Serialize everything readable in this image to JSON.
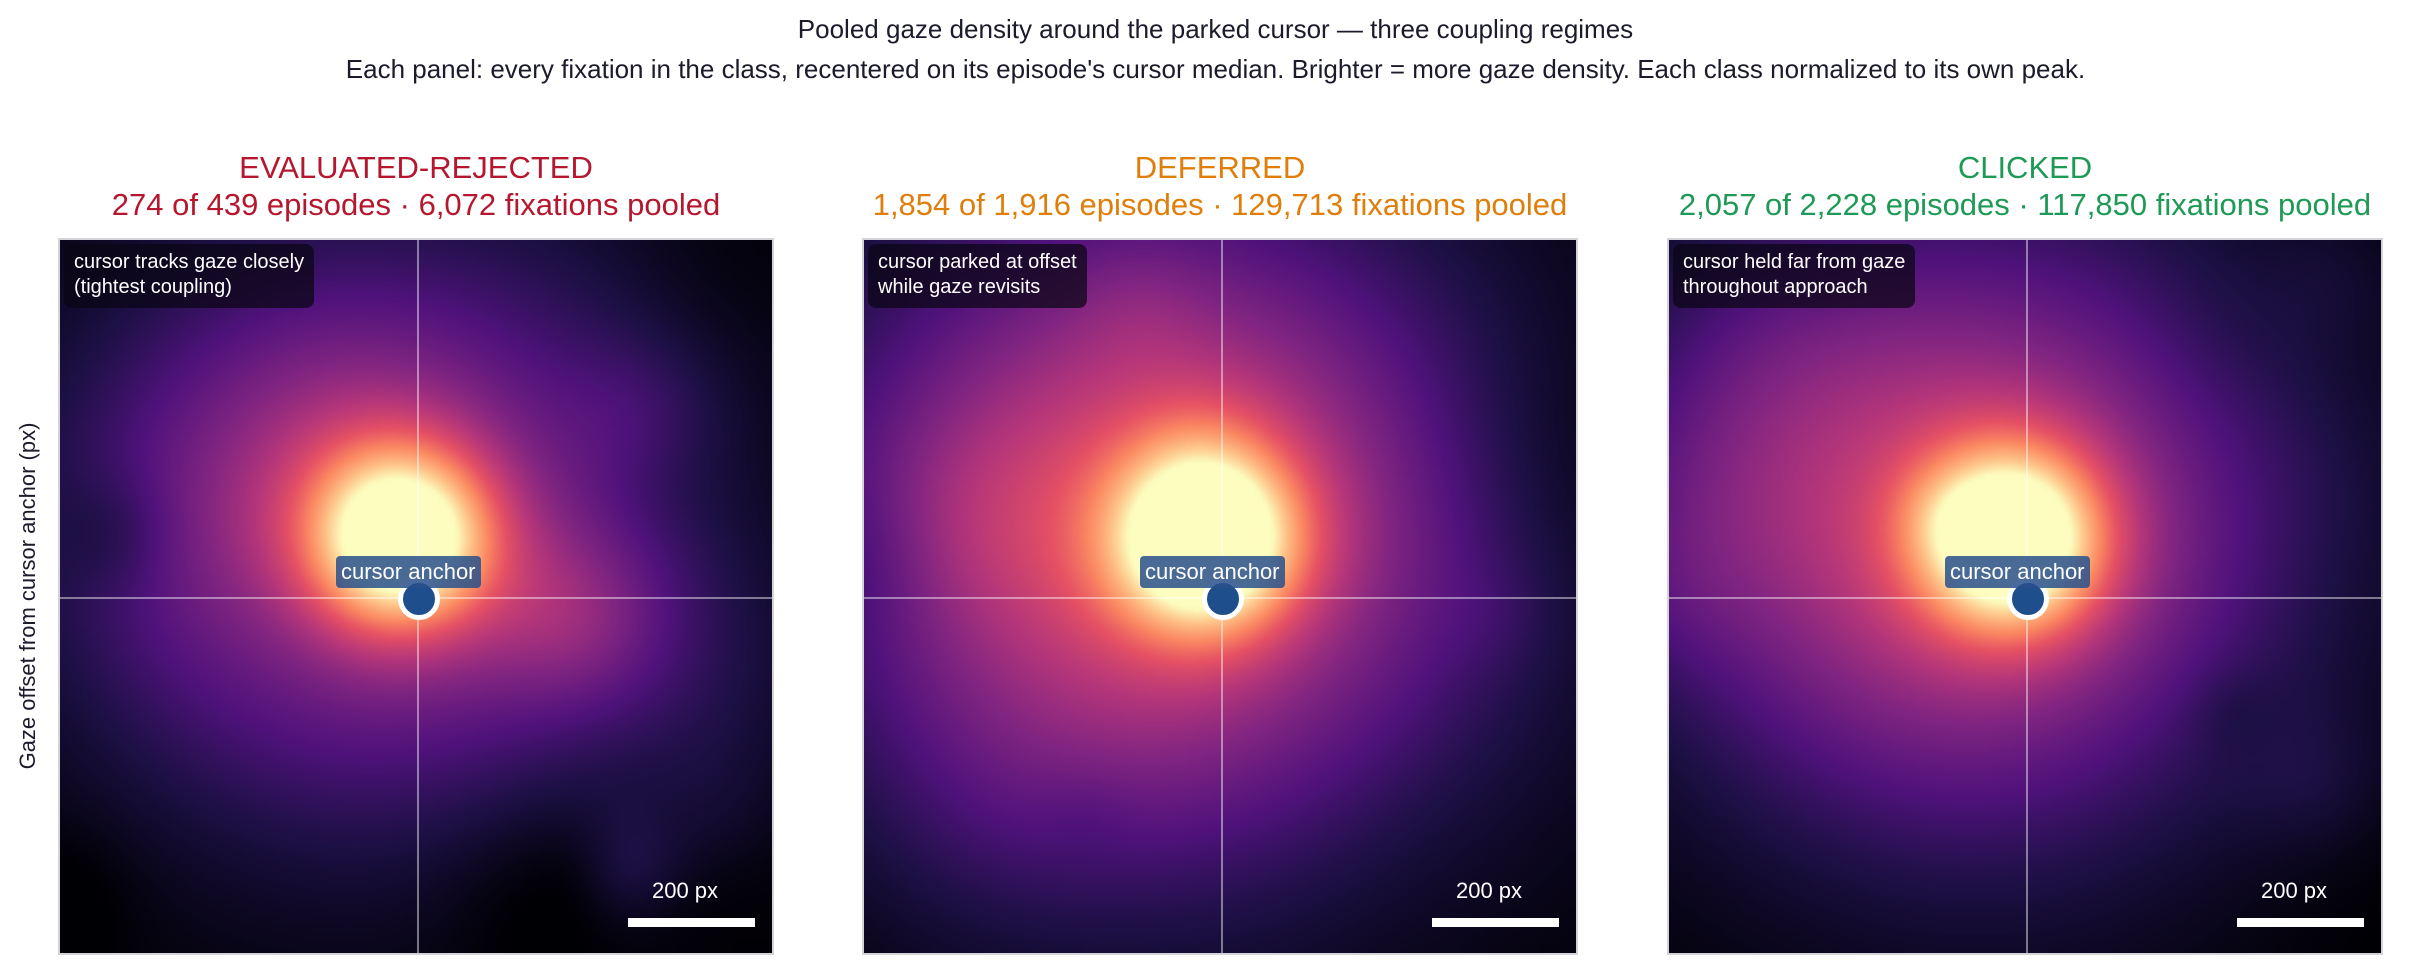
{
  "title": "Pooled gaze density around the parked cursor — three coupling regimes",
  "subtitle": "Each panel: every fixation in the class, recentered on its episode's cursor median. Brighter = more gaze density. Each class normalized to its own peak.",
  "chart_data": {
    "type": "heatmap",
    "colormap": "magma",
    "ylabel": "Gaze offset from cursor anchor (px)",
    "panels": [
      {
        "title": "EVALUATED-REJECTED",
        "subtitle": "274 of 439 episodes · 6,072 fixations pooled",
        "color": "#b5172f",
        "note": "cursor tracks gaze closely\n(tightest coupling)",
        "anchor_label": "cursor anchor",
        "scale_label": "200 px",
        "episodes_included": 274,
        "episodes_total": 439,
        "fixations": 6072
      },
      {
        "title": "DEFERRED",
        "subtitle": "1,854 of 1,916 episodes · 129,713 fixations pooled",
        "color": "#e07e0c",
        "note": "cursor parked at offset\nwhile gaze revisits",
        "anchor_label": "cursor anchor",
        "scale_label": "200 px",
        "episodes_included": 1854,
        "episodes_total": 1916,
        "fixations": 129713
      },
      {
        "title": "CLICKED",
        "subtitle": "2,057 of 2,228 episodes · 117,850 fixations pooled",
        "color": "#1e9a56",
        "note": "cursor held far from gaze\nthroughout approach",
        "anchor_label": "cursor anchor",
        "scale_label": "200 px",
        "episodes_included": 2057,
        "episodes_total": 2228,
        "fixations": 117850
      }
    ],
    "anchor_color": "#1f4e8c"
  }
}
